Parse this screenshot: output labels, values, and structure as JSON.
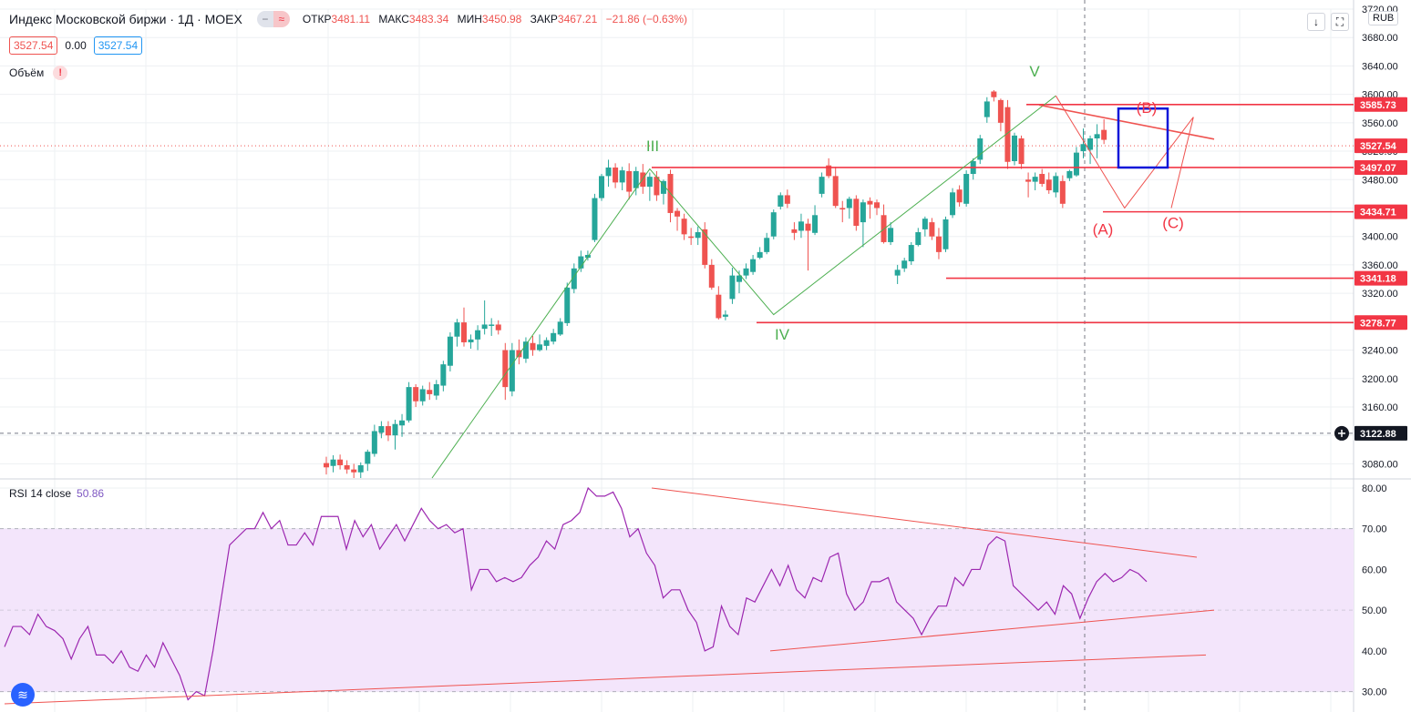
{
  "header": {
    "title": "Индекс Московской биржи · 1Д · MOEX",
    "ohlc": [
      {
        "key": "ОТКР",
        "value": "3481.11"
      },
      {
        "key": "МАКС",
        "value": "3483.34"
      },
      {
        "key": "МИН",
        "value": "3450.98"
      },
      {
        "key": "ЗАКР",
        "value": "3467.21"
      }
    ],
    "change": "−21.86 (−0.63%)",
    "sell_price": "3527.54",
    "spread": "0.00",
    "buy_price": "3527.54",
    "volume_label": "Объём",
    "warn_mark": "!",
    "currency": "RUB"
  },
  "rsi": {
    "label": "RSI 14 close",
    "value": "50.86"
  },
  "colors": {
    "up": "#26a69a",
    "down": "#ef5350",
    "wave": "#4caf50",
    "level": "#f23645",
    "rsi": "#9c27b0",
    "rsi_band": "#f3e5fb",
    "box": "#0d17d9"
  },
  "icons": [
    "down-arrow-icon",
    "fullscreen-icon",
    "tradingview-logo-icon"
  ],
  "chart_data": {
    "type": "candlestick",
    "price_axis": {
      "range": [
        3060,
        3720
      ],
      "ticks": [
        3720,
        3680,
        3640,
        3600,
        3560,
        3520,
        3480,
        3440,
        3400,
        3360,
        3320,
        3280,
        3240,
        3200,
        3160,
        3120,
        3080
      ],
      "labels": [
        "3720.00",
        "3680.00",
        "3640.00",
        "3600.00",
        "3560.00",
        "3520.00",
        "3480.00",
        "3440.00",
        "3400.00",
        "3360.00",
        "3320.00",
        "3280.00",
        "3240.00",
        "3200.00",
        "3160.00",
        "3120.00",
        "3080.00"
      ]
    },
    "rsi_axis": {
      "range": [
        25,
        82
      ],
      "ticks": [
        80,
        70,
        60,
        50,
        40,
        30
      ],
      "labels": [
        "80.00",
        "70.00",
        "60.00",
        "50.00",
        "40.00",
        "30.00"
      ],
      "band": [
        30,
        70
      ]
    },
    "price_levels": [
      {
        "value": 3585.73,
        "label": "3585.73",
        "boxed": true
      },
      {
        "value": 3527.54,
        "label": "3527.54",
        "boxed": true,
        "dotted": true
      },
      {
        "value": 3497.07,
        "label": "3497.07",
        "boxed": true
      },
      {
        "value": 3434.71,
        "label": "3434.71",
        "boxed": true
      },
      {
        "value": 3341.18,
        "label": "3341.18",
        "boxed": true
      },
      {
        "value": 3278.77,
        "label": "3278.77",
        "boxed": true
      },
      {
        "value": 3122.88,
        "label": "3122.88",
        "crosshair": true
      }
    ],
    "wave_labels": [
      {
        "text": "III",
        "color": "wave"
      },
      {
        "text": "IV",
        "color": "wave"
      },
      {
        "text": "V",
        "color": "wave"
      },
      {
        "text": "(A)",
        "color": "level"
      },
      {
        "text": "(B)",
        "color": "level"
      },
      {
        "text": "(C)",
        "color": "level"
      }
    ],
    "candles": [
      {
        "o": 3081,
        "h": 3090,
        "l": 3065,
        "c": 3075
      },
      {
        "o": 3077,
        "h": 3092,
        "l": 3068,
        "c": 3086
      },
      {
        "o": 3086,
        "h": 3093,
        "l": 3072,
        "c": 3078
      },
      {
        "o": 3078,
        "h": 3085,
        "l": 3066,
        "c": 3072
      },
      {
        "o": 3072,
        "h": 3080,
        "l": 3060,
        "c": 3068
      },
      {
        "o": 3068,
        "h": 3082,
        "l": 3060,
        "c": 3078
      },
      {
        "o": 3080,
        "h": 3100,
        "l": 3070,
        "c": 3097
      },
      {
        "o": 3094,
        "h": 3135,
        "l": 3090,
        "c": 3126
      },
      {
        "o": 3124,
        "h": 3140,
        "l": 3116,
        "c": 3133
      },
      {
        "o": 3133,
        "h": 3140,
        "l": 3112,
        "c": 3120
      },
      {
        "o": 3120,
        "h": 3142,
        "l": 3100,
        "c": 3136
      },
      {
        "o": 3134,
        "h": 3150,
        "l": 3118,
        "c": 3141
      },
      {
        "o": 3141,
        "h": 3195,
        "l": 3138,
        "c": 3188
      },
      {
        "o": 3188,
        "h": 3192,
        "l": 3160,
        "c": 3168
      },
      {
        "o": 3168,
        "h": 3190,
        "l": 3162,
        "c": 3185
      },
      {
        "o": 3184,
        "h": 3195,
        "l": 3170,
        "c": 3178
      },
      {
        "o": 3176,
        "h": 3198,
        "l": 3170,
        "c": 3192
      },
      {
        "o": 3190,
        "h": 3225,
        "l": 3182,
        "c": 3220
      },
      {
        "o": 3218,
        "h": 3265,
        "l": 3210,
        "c": 3259
      },
      {
        "o": 3259,
        "h": 3284,
        "l": 3245,
        "c": 3279
      },
      {
        "o": 3279,
        "h": 3300,
        "l": 3245,
        "c": 3251
      },
      {
        "o": 3251,
        "h": 3262,
        "l": 3242,
        "c": 3255
      },
      {
        "o": 3255,
        "h": 3275,
        "l": 3240,
        "c": 3268
      },
      {
        "o": 3270,
        "h": 3310,
        "l": 3262,
        "c": 3276
      },
      {
        "o": 3276,
        "h": 3285,
        "l": 3260,
        "c": 3276
      },
      {
        "o": 3276,
        "h": 3282,
        "l": 3262,
        "c": 3268
      },
      {
        "o": 3240,
        "h": 3250,
        "l": 3170,
        "c": 3188
      },
      {
        "o": 3182,
        "h": 3250,
        "l": 3175,
        "c": 3240
      },
      {
        "o": 3240,
        "h": 3255,
        "l": 3220,
        "c": 3230
      },
      {
        "o": 3228,
        "h": 3258,
        "l": 3222,
        "c": 3252
      },
      {
        "o": 3250,
        "h": 3260,
        "l": 3232,
        "c": 3240
      },
      {
        "o": 3240,
        "h": 3262,
        "l": 3238,
        "c": 3248
      },
      {
        "o": 3246,
        "h": 3258,
        "l": 3240,
        "c": 3254
      },
      {
        "o": 3252,
        "h": 3270,
        "l": 3248,
        "c": 3264
      },
      {
        "o": 3262,
        "h": 3285,
        "l": 3260,
        "c": 3280
      },
      {
        "o": 3278,
        "h": 3335,
        "l": 3274,
        "c": 3328
      },
      {
        "o": 3326,
        "h": 3362,
        "l": 3320,
        "c": 3355
      },
      {
        "o": 3355,
        "h": 3380,
        "l": 3350,
        "c": 3372
      },
      {
        "o": 3370,
        "h": 3380,
        "l": 3366,
        "c": 3374
      },
      {
        "o": 3395,
        "h": 3460,
        "l": 3392,
        "c": 3454
      },
      {
        "o": 3454,
        "h": 3488,
        "l": 3450,
        "c": 3485
      },
      {
        "o": 3485,
        "h": 3508,
        "l": 3470,
        "c": 3497
      },
      {
        "o": 3497,
        "h": 3503,
        "l": 3468,
        "c": 3476
      },
      {
        "o": 3476,
        "h": 3498,
        "l": 3465,
        "c": 3493
      },
      {
        "o": 3492,
        "h": 3503,
        "l": 3452,
        "c": 3463
      },
      {
        "o": 3468,
        "h": 3498,
        "l": 3458,
        "c": 3492
      },
      {
        "o": 3490,
        "h": 3502,
        "l": 3460,
        "c": 3470
      },
      {
        "o": 3470,
        "h": 3490,
        "l": 3450,
        "c": 3484
      },
      {
        "o": 3484,
        "h": 3492,
        "l": 3450,
        "c": 3458
      },
      {
        "o": 3460,
        "h": 3480,
        "l": 3445,
        "c": 3478
      },
      {
        "o": 3488,
        "h": 3494,
        "l": 3420,
        "c": 3433
      },
      {
        "o": 3436,
        "h": 3440,
        "l": 3408,
        "c": 3428
      },
      {
        "o": 3425,
        "h": 3432,
        "l": 3395,
        "c": 3403
      },
      {
        "o": 3400,
        "h": 3412,
        "l": 3388,
        "c": 3398
      },
      {
        "o": 3398,
        "h": 3414,
        "l": 3388,
        "c": 3406
      },
      {
        "o": 3410,
        "h": 3420,
        "l": 3355,
        "c": 3360
      },
      {
        "o": 3360,
        "h": 3368,
        "l": 3325,
        "c": 3328
      },
      {
        "o": 3318,
        "h": 3330,
        "l": 3283,
        "c": 3285
      },
      {
        "o": 3287,
        "h": 3296,
        "l": 3282,
        "c": 3290
      },
      {
        "o": 3312,
        "h": 3356,
        "l": 3305,
        "c": 3345
      },
      {
        "o": 3336,
        "h": 3352,
        "l": 3320,
        "c": 3345
      },
      {
        "o": 3345,
        "h": 3362,
        "l": 3340,
        "c": 3355
      },
      {
        "o": 3350,
        "h": 3374,
        "l": 3346,
        "c": 3368
      },
      {
        "o": 3370,
        "h": 3385,
        "l": 3368,
        "c": 3378
      },
      {
        "o": 3378,
        "h": 3405,
        "l": 3375,
        "c": 3398
      },
      {
        "o": 3400,
        "h": 3438,
        "l": 3396,
        "c": 3434
      },
      {
        "o": 3442,
        "h": 3462,
        "l": 3438,
        "c": 3458
      },
      {
        "o": 3458,
        "h": 3466,
        "l": 3440,
        "c": 3446
      },
      {
        "o": 3410,
        "h": 3420,
        "l": 3395,
        "c": 3405
      },
      {
        "o": 3408,
        "h": 3432,
        "l": 3398,
        "c": 3421
      },
      {
        "o": 3418,
        "h": 3425,
        "l": 3352,
        "c": 3408
      },
      {
        "o": 3405,
        "h": 3444,
        "l": 3402,
        "c": 3430
      },
      {
        "o": 3460,
        "h": 3490,
        "l": 3455,
        "c": 3484
      },
      {
        "o": 3500,
        "h": 3510,
        "l": 3482,
        "c": 3485
      },
      {
        "o": 3485,
        "h": 3498,
        "l": 3440,
        "c": 3443
      },
      {
        "o": 3440,
        "h": 3450,
        "l": 3420,
        "c": 3438
      },
      {
        "o": 3440,
        "h": 3456,
        "l": 3425,
        "c": 3453
      },
      {
        "o": 3453,
        "h": 3458,
        "l": 3408,
        "c": 3415
      },
      {
        "o": 3420,
        "h": 3452,
        "l": 3385,
        "c": 3448
      },
      {
        "o": 3450,
        "h": 3455,
        "l": 3425,
        "c": 3445
      },
      {
        "o": 3448,
        "h": 3452,
        "l": 3430,
        "c": 3440
      },
      {
        "o": 3430,
        "h": 3445,
        "l": 3390,
        "c": 3392
      },
      {
        "o": 3392,
        "h": 3420,
        "l": 3388,
        "c": 3412
      },
      {
        "o": 3345,
        "h": 3360,
        "l": 3333,
        "c": 3353
      },
      {
        "o": 3355,
        "h": 3370,
        "l": 3350,
        "c": 3366
      },
      {
        "o": 3365,
        "h": 3392,
        "l": 3360,
        "c": 3388
      },
      {
        "o": 3388,
        "h": 3412,
        "l": 3386,
        "c": 3406
      },
      {
        "o": 3410,
        "h": 3428,
        "l": 3400,
        "c": 3425
      },
      {
        "o": 3420,
        "h": 3426,
        "l": 3395,
        "c": 3400
      },
      {
        "o": 3400,
        "h": 3412,
        "l": 3368,
        "c": 3378
      },
      {
        "o": 3382,
        "h": 3428,
        "l": 3378,
        "c": 3424
      },
      {
        "o": 3430,
        "h": 3468,
        "l": 3426,
        "c": 3462
      },
      {
        "o": 3466,
        "h": 3472,
        "l": 3442,
        "c": 3448
      },
      {
        "o": 3446,
        "h": 3493,
        "l": 3442,
        "c": 3488
      },
      {
        "o": 3488,
        "h": 3510,
        "l": 3480,
        "c": 3506
      },
      {
        "o": 3508,
        "h": 3543,
        "l": 3502,
        "c": 3538
      },
      {
        "o": 3568,
        "h": 3596,
        "l": 3560,
        "c": 3590
      },
      {
        "o": 3604,
        "h": 3606,
        "l": 3590,
        "c": 3596
      },
      {
        "o": 3592,
        "h": 3594,
        "l": 3548,
        "c": 3560
      },
      {
        "o": 3582,
        "h": 3592,
        "l": 3495,
        "c": 3505
      },
      {
        "o": 3506,
        "h": 3546,
        "l": 3500,
        "c": 3542
      },
      {
        "o": 3538,
        "h": 3542,
        "l": 3495,
        "c": 3502
      },
      {
        "o": 3480,
        "h": 3490,
        "l": 3455,
        "c": 3477
      },
      {
        "o": 3477,
        "h": 3490,
        "l": 3465,
        "c": 3484
      },
      {
        "o": 3488,
        "h": 3495,
        "l": 3470,
        "c": 3474
      },
      {
        "o": 3480,
        "h": 3490,
        "l": 3460,
        "c": 3465
      },
      {
        "o": 3462,
        "h": 3490,
        "l": 3455,
        "c": 3485
      },
      {
        "o": 3478,
        "h": 3486,
        "l": 3440,
        "c": 3446
      },
      {
        "o": 3482,
        "h": 3494,
        "l": 3478,
        "c": 3492
      },
      {
        "o": 3486,
        "h": 3526,
        "l": 3484,
        "c": 3518
      },
      {
        "o": 3520,
        "h": 3552,
        "l": 3510,
        "c": 3530
      },
      {
        "o": 3522,
        "h": 3542,
        "l": 3502,
        "c": 3538
      },
      {
        "o": 3538,
        "h": 3558,
        "l": 3510,
        "c": 3544
      },
      {
        "o": 3550,
        "h": 3565,
        "l": 3530,
        "c": 3536
      }
    ],
    "rsi_values": [
      41,
      46,
      46,
      44,
      49,
      46,
      45,
      43,
      38,
      43,
      46,
      39,
      39,
      37,
      40,
      36,
      35,
      39,
      36,
      42,
      38,
      34,
      28,
      30,
      29,
      40,
      53,
      66,
      68,
      70,
      70,
      74,
      70,
      72,
      66,
      66,
      69,
      66,
      73,
      73,
      73,
      65,
      72,
      68,
      71,
      65,
      68,
      71,
      67,
      71,
      75,
      72,
      70,
      71,
      69,
      70,
      55,
      60,
      60,
      57,
      58,
      57,
      58,
      61,
      63,
      67,
      65,
      71,
      72,
      74,
      80,
      78,
      78,
      79,
      75,
      68,
      70,
      64,
      61,
      53,
      55,
      55,
      50,
      47,
      40,
      41,
      51,
      46,
      44,
      53,
      52,
      56,
      60,
      56,
      61,
      55,
      53,
      58,
      57,
      63,
      64,
      54,
      50,
      52,
      57,
      57,
      58,
      52,
      50,
      48,
      44,
      48,
      51,
      51,
      58,
      56,
      60,
      60,
      66,
      68,
      67,
      56,
      54,
      52,
      50,
      52,
      49,
      56,
      54,
      48,
      53,
      57,
      59,
      57,
      58,
      60,
      59,
      57
    ]
  }
}
